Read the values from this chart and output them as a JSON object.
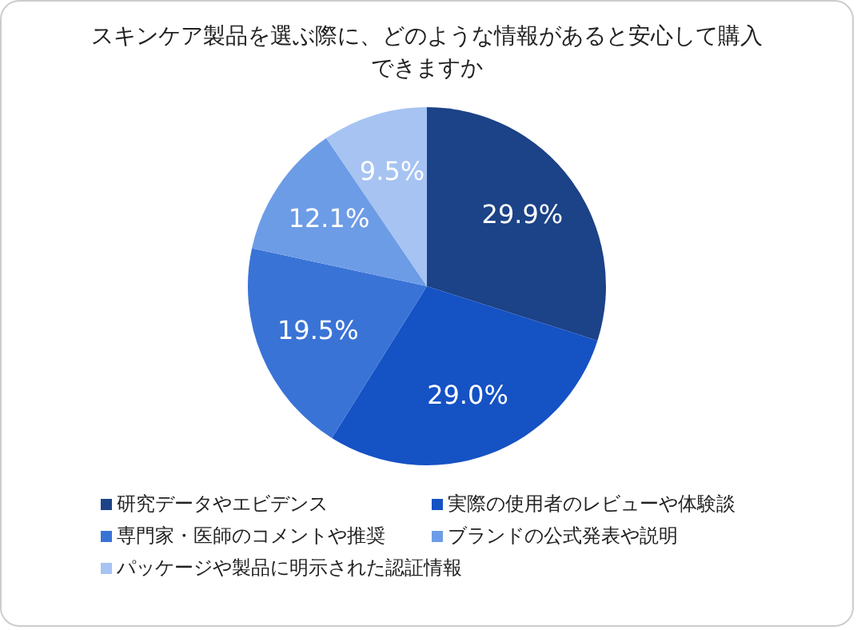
{
  "chart_data": {
    "type": "pie",
    "title": "スキンケア製品を選ぶ際に、どのような情報があると安心して購入できますか",
    "categories": [
      "研究データやエビデンス",
      "実際の使用者のレビューや体験談",
      "専門家・医師のコメントや推奨",
      "ブランドの公式発表や説明",
      "パッケージや製品に明示された認証情報"
    ],
    "values": [
      29.9,
      29.0,
      19.5,
      12.1,
      9.5
    ],
    "colors": [
      "#1c4287",
      "#1552c4",
      "#3a73d6",
      "#6d9ce6",
      "#a6c3f2"
    ],
    "value_labels": [
      "29.9%",
      "29.0%",
      "19.5%",
      "12.1%",
      "9.5%"
    ],
    "legend": "bottom"
  }
}
